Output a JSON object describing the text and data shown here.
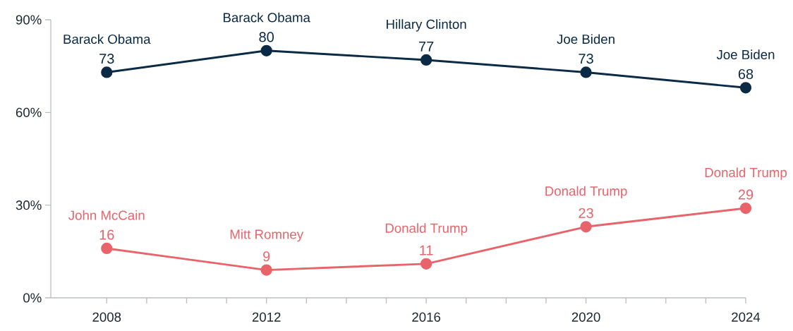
{
  "chart_data": {
    "type": "line",
    "x": [
      2008,
      2012,
      2016,
      2020,
      2024
    ],
    "series": [
      {
        "color": "#0b2a45",
        "values": [
          73,
          80,
          77,
          73,
          68
        ]
      },
      {
        "color": "#e8636a",
        "values": [
          16,
          9,
          11,
          23,
          29
        ]
      }
    ],
    "xlim": [
      2006.6,
      2024
    ],
    "ylim": [
      0,
      90
    ],
    "xticks": [
      2008,
      {
        "value": 2009,
        "label": null
      },
      {
        "value": 2010,
        "label": null
      },
      {
        "value": 2011,
        "label": null
      },
      2012,
      {
        "value": 2013,
        "label": null
      },
      {
        "value": 2014,
        "label": null
      },
      {
        "value": 2015,
        "label": null
      },
      2016,
      {
        "value": 2017,
        "label": null
      },
      {
        "value": 2018,
        "label": null
      },
      {
        "value": 2019,
        "label": null
      },
      2020,
      {
        "value": 2021,
        "label": null
      },
      {
        "value": 2022,
        "label": null
      },
      {
        "value": 2023,
        "label": null
      },
      2024
    ],
    "yticks": [
      {
        "value": 0,
        "label": "0%"
      },
      {
        "value": 30,
        "label": "30%"
      },
      {
        "value": 60,
        "label": "60%"
      },
      {
        "value": 90,
        "label": "90%"
      }
    ],
    "marker": "circle",
    "line_style": "solid",
    "data_labels": true,
    "annotations": [
      {
        "text": "Barack Obama",
        "x": 2008,
        "y": 73
      },
      {
        "text": "Barack Obama",
        "x": 2012,
        "y": 80
      },
      {
        "text": "Hillary Clinton",
        "x": 2016,
        "y": 77
      },
      {
        "text": "Joe Biden",
        "x": 2020,
        "y": 73
      },
      {
        "text": "Joe Biden",
        "x": 2024,
        "y": 68
      },
      {
        "text": "John McCain",
        "x": 2008,
        "y": 16
      },
      {
        "text": "Mitt Romney",
        "x": 2012,
        "y": 9
      },
      {
        "text": "Donald Trump",
        "x": 2016,
        "y": 11
      },
      {
        "text": "Donald Trump",
        "x": 2020,
        "y": 23
      },
      {
        "text": "Donald Trump",
        "x": 2024,
        "y": 29
      }
    ]
  }
}
